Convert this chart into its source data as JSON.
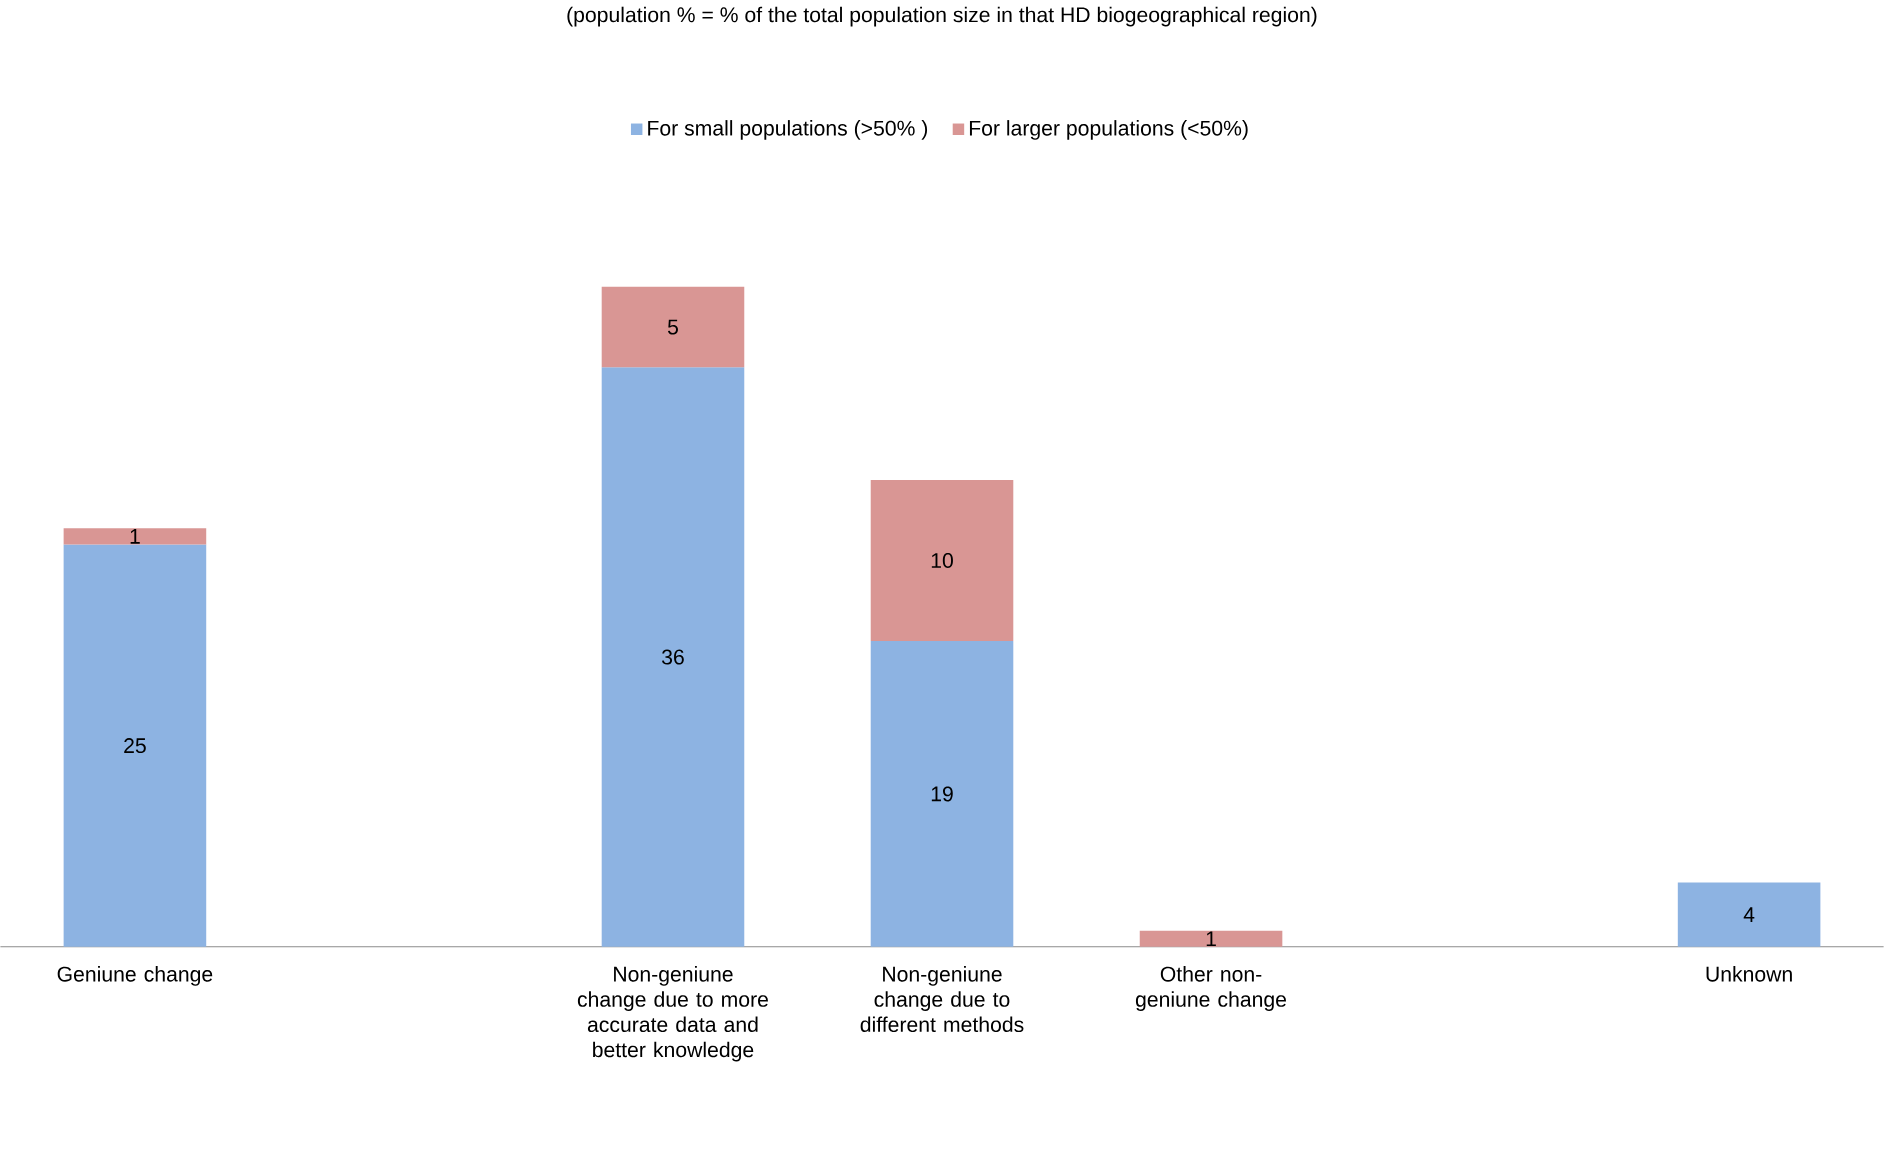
{
  "chart_data": {
    "type": "bar",
    "title": "(population % = % of the total population size in that HD biogeographical region)",
    "categories": [
      "Geniune change",
      null,
      "Non-geniune change due to more accurate data and better knowledge",
      "Non-geniune change due to different methods",
      "Other non-geniune change",
      null,
      "Unknown"
    ],
    "stacked": true,
    "data_labels": true,
    "legend": "top",
    "grid": false,
    "tick_labels": "x",
    "series": [
      {
        "name": "For small populations (>50% )",
        "color": "#8db3e2",
        "values": [
          25,
          null,
          36,
          19,
          null,
          null,
          4
        ]
      },
      {
        "name": "For larger populations (<50%)",
        "color": "#d99694",
        "values": [
          1,
          null,
          5,
          10,
          1,
          null,
          null
        ]
      }
    ]
  }
}
